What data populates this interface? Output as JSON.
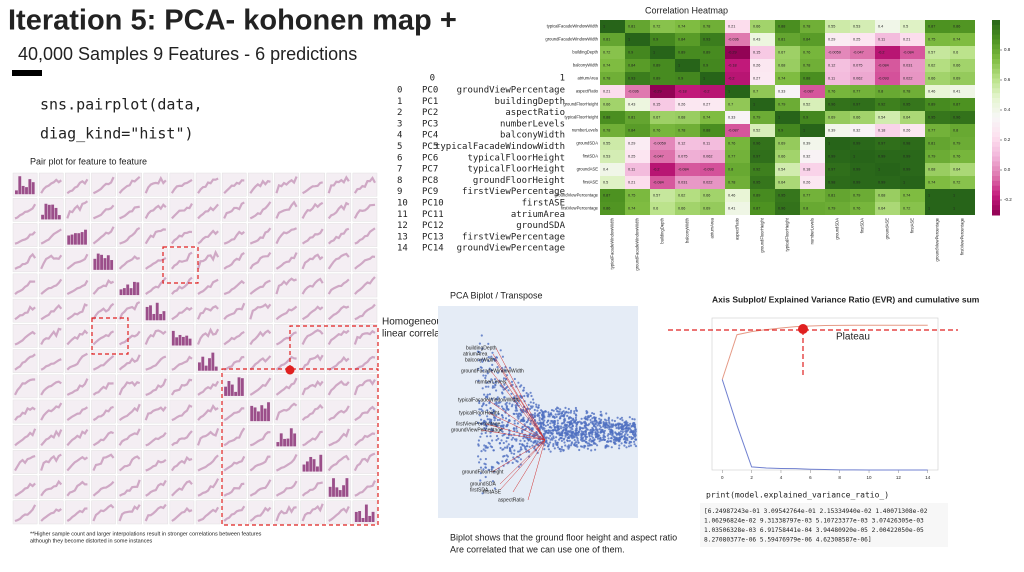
{
  "header": {
    "title": "Iteration 5: PCA- kohonen map +",
    "subtitle": "40,000 Samples 9  Features - 6 predictions"
  },
  "code": {
    "lines": [
      "sns.pairplot(data,",
      "diag_kind=\"hist\")"
    ]
  },
  "pairplot": {
    "title": "Pair plot for feature to feature",
    "annotation": [
      "Homogeneous",
      "linear correlation"
    ],
    "footnote": [
      "**Higher sample count and larger interpolations result in stronger correlations between features",
      "although they become distorted in some instances"
    ]
  },
  "pca_table": {
    "header": [
      "0",
      "1"
    ],
    "rows": [
      [
        0,
        "PC0",
        "groundViewPercentage"
      ],
      [
        1,
        "PC1",
        "buildingDepth"
      ],
      [
        2,
        "PC2",
        "aspectRatio"
      ],
      [
        3,
        "PC3",
        "numberLevels"
      ],
      [
        4,
        "PC4",
        "balconyWidth"
      ],
      [
        5,
        "PC5",
        "typicalFacadeWindowWidth"
      ],
      [
        6,
        "PC6",
        "typicalFloorHeight"
      ],
      [
        7,
        "PC7",
        "typicalFloorHeight"
      ],
      [
        8,
        "PC8",
        "groundFloorHeight"
      ],
      [
        9,
        "PC9",
        "firstViewPercentage"
      ],
      [
        10,
        "PC10",
        "firstASE"
      ],
      [
        11,
        "PC11",
        "atriumArea"
      ],
      [
        12,
        "PC12",
        "groundSDA"
      ],
      [
        13,
        "PC13",
        "firstViewPercentage"
      ],
      [
        14,
        "PC14",
        "groundViewPercentage"
      ]
    ]
  },
  "biplot": {
    "title": "PCA Biplot / Transpose",
    "features": [
      "buildingDepth",
      "atriumArea",
      "balconyWidth",
      "groundFacadeWindowWidth",
      "numberLevels",
      "typicalFacadeWindowWidth",
      "typicalFloorHeight",
      "firstViewPercentage",
      "groundViewPercentage",
      "groundFloorHeight",
      "groundSDA",
      "firstSDA",
      "firstASE",
      "aspectRatio"
    ],
    "caption": [
      "Biplot  shows that the ground floor height and aspect ratio",
      "Are correlated that we can use one of them."
    ]
  },
  "evr_output": {
    "command": "print(model.explained_variance_ratio_)",
    "lines": [
      "[6.24987243e-01 3.09542764e-01 2.15334940e-02 1.40071308e-02",
      " 1.06296824e-02 9.31338797e-03 5.10723377e-03 3.07426305e-03",
      " 1.03506328e-03 6.91758441e-04 3.94480920e-05 2.00422050e-05",
      " 8.27080377e-06 5.59476979e-06 4.62308587e-06]"
    ]
  },
  "chart_data": [
    {
      "type": "heatmap",
      "title": "Correlation Heatmap",
      "colormap": "PiYG",
      "labels": [
        "typicalFacadeWindowWidth",
        "groundFacadeWindowWidth",
        "buildingDepth",
        "balconyWidth",
        "atriumArea",
        "aspectRatio",
        "groundFloorHeight",
        "typicalFloorHeight",
        "numberLevels",
        "groundSDA",
        "firstSDA",
        "groundASE",
        "firstASE",
        "groundViewPercentage",
        "firstViewPercentage"
      ],
      "values": [
        [
          1,
          0.81,
          0.72,
          0.74,
          0.78,
          0.21,
          0.66,
          0.88,
          0.78,
          0.55,
          0.53,
          0.4,
          0.5,
          0.87,
          0.86
        ],
        [
          0.81,
          1,
          0.9,
          0.84,
          0.93,
          -0.036,
          0.43,
          0.81,
          0.84,
          0.29,
          0.25,
          0.11,
          0.21,
          0.75,
          0.74
        ],
        [
          0.72,
          0.9,
          1,
          0.89,
          0.89,
          -0.29,
          0.15,
          0.67,
          0.76,
          -0.0059,
          -0.047,
          -0.2,
          -0.084,
          0.57,
          0.6
        ],
        [
          0.74,
          0.84,
          0.89,
          1,
          0.9,
          -0.18,
          0.26,
          0.68,
          0.78,
          0.12,
          0.075,
          -0.084,
          0.031,
          0.62,
          0.66
        ],
        [
          0.78,
          0.93,
          0.89,
          0.9,
          1,
          -0.2,
          0.27,
          0.74,
          0.88,
          0.11,
          0.062,
          -0.093,
          0.022,
          0.66,
          0.69
        ],
        [
          0.21,
          -0.036,
          -0.29,
          -0.18,
          -0.2,
          1,
          0.7,
          0.33,
          -0.087,
          0.76,
          0.77,
          0.8,
          0.78,
          0.46,
          0.41
        ],
        [
          0.66,
          0.43,
          0.15,
          0.26,
          0.27,
          0.7,
          1,
          0.79,
          0.52,
          0.96,
          0.97,
          0.92,
          0.95,
          0.89,
          0.87
        ],
        [
          0.88,
          0.81,
          0.67,
          0.68,
          0.74,
          0.33,
          0.79,
          1,
          0.9,
          0.69,
          0.66,
          0.54,
          0.64,
          0.95,
          0.96
        ],
        [
          0.78,
          0.84,
          0.76,
          0.78,
          0.88,
          -0.087,
          0.52,
          0.9,
          1,
          0.39,
          0.32,
          0.18,
          0.26,
          0.77,
          0.8
        ],
        [
          0.55,
          0.29,
          -0.0059,
          0.12,
          0.11,
          0.76,
          0.96,
          0.69,
          0.39,
          1,
          0.99,
          0.97,
          0.98,
          0.81,
          0.79
        ],
        [
          0.53,
          0.25,
          -0.047,
          0.075,
          0.062,
          0.77,
          0.97,
          0.66,
          0.32,
          0.99,
          1,
          0.99,
          0.99,
          0.79,
          0.76
        ],
        [
          0.4,
          0.11,
          -0.2,
          -0.084,
          -0.093,
          0.8,
          0.92,
          0.54,
          0.18,
          0.97,
          0.99,
          1,
          0.99,
          0.68,
          0.64
        ],
        [
          0.5,
          0.21,
          -0.084,
          0.031,
          0.022,
          0.78,
          0.95,
          0.64,
          0.26,
          0.98,
          0.99,
          0.99,
          1,
          0.74,
          0.72
        ],
        [
          0.87,
          0.75,
          0.57,
          0.62,
          0.66,
          0.46,
          0.89,
          0.95,
          0.77,
          0.81,
          0.79,
          0.68,
          0.74,
          1,
          1
        ],
        [
          0.86,
          0.74,
          0.6,
          0.66,
          0.69,
          0.41,
          0.87,
          0.96,
          0.8,
          0.79,
          0.76,
          0.64,
          0.72,
          1,
          1
        ]
      ],
      "colorbar_lim": [
        -0.3,
        1
      ],
      "colorbar_ticks": [
        0.8,
        0.6,
        0.4,
        0.2,
        {
          "value": 0,
          "label": "0.0"
        },
        -0.2
      ]
    },
    {
      "type": "line",
      "title": "Axis Subplot/ Explained Variance Ratio (EVR) and cumulative sum",
      "x": [
        0,
        1,
        2,
        3,
        4,
        5,
        6,
        7,
        8,
        9,
        10,
        11,
        12,
        13,
        14
      ],
      "series": [
        {
          "color": "#7080d0",
          "values": [
            0.624987243,
            0.309542764,
            0.021533494,
            0.0140071308,
            0.0106296824,
            0.00931338797,
            0.00510723377,
            0.00307426305,
            0.00103506328,
            0.000691758441,
            3.9448092e-05,
            2.0042205e-05,
            8.27080377e-06,
            5.59476979e-06,
            4.62308587e-06
          ]
        }
      ],
      "cumulative": true,
      "cumulative_color": "#e59a86",
      "xlim": [
        -0.7,
        14.7
      ],
      "ylim": [
        0,
        1.05
      ],
      "xticks": [
        0,
        2,
        4,
        6,
        8,
        10,
        12,
        14
      ],
      "annotation": "Plateau"
    }
  ]
}
